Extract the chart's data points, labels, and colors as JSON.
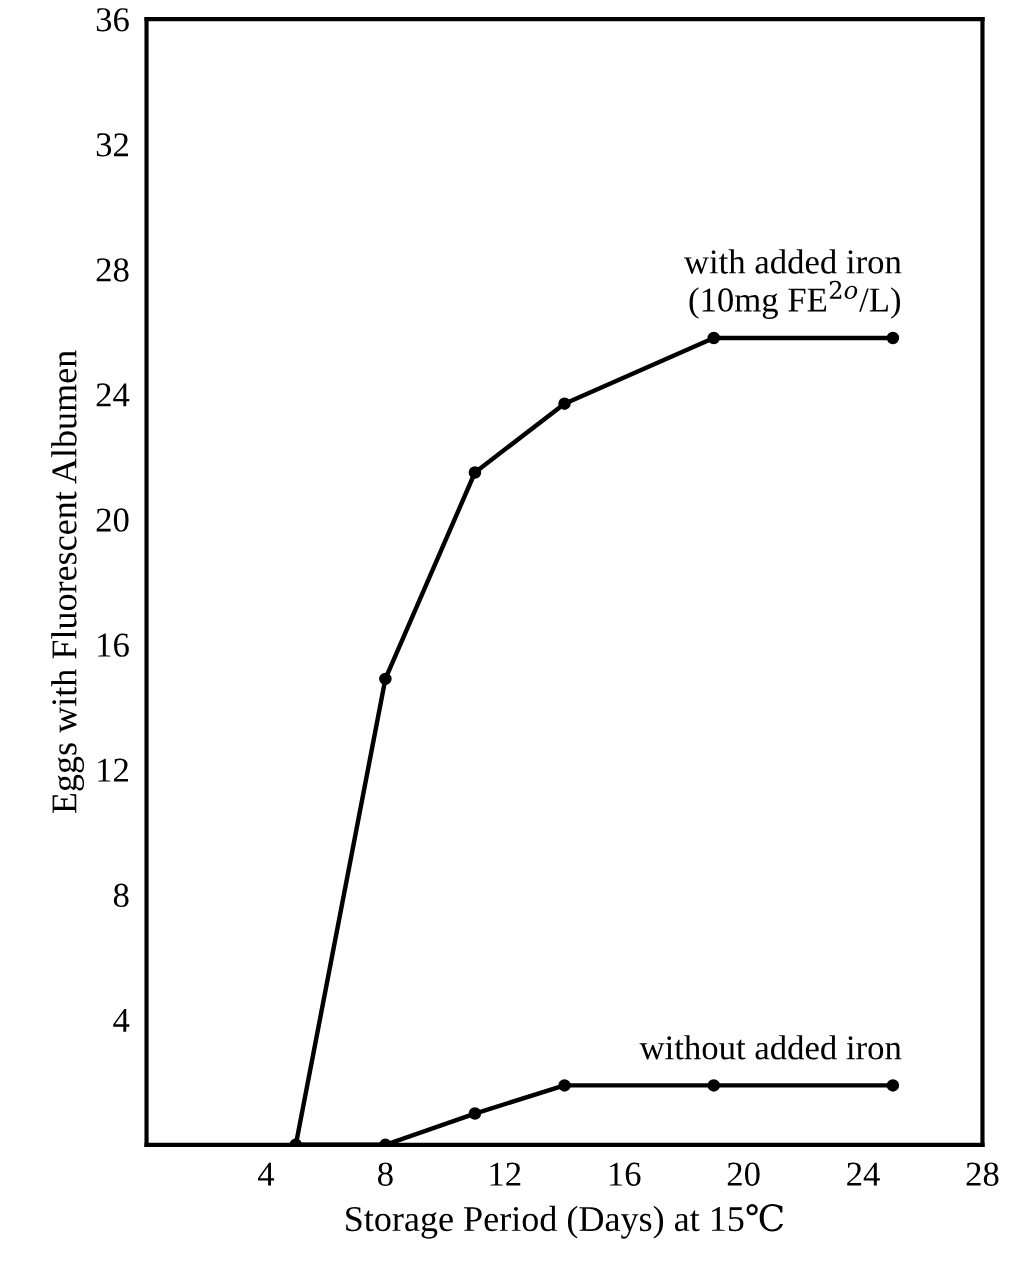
{
  "chart_data": {
    "type": "line",
    "xlabel": "Storage Period (Days) at 15℃",
    "ylabel": "Eggs with Fluorescent Albumen",
    "xlim": [
      0,
      28
    ],
    "xticks": [
      4,
      8,
      12,
      16,
      20,
      24,
      28
    ],
    "ylim": [
      0,
      36
    ],
    "yticks": [
      4,
      8,
      12,
      16,
      20,
      24,
      28,
      32,
      36
    ],
    "grid": false,
    "legend": false,
    "marker": "circle",
    "line_style": "solid",
    "series": [
      {
        "name": "with added iron\n(10mg FE$^{2o}$/L)",
        "color": "#000000",
        "x": [
          5,
          8,
          11,
          14,
          19,
          25
        ],
        "values": [
          0,
          14.9,
          21.5,
          23.7,
          25.8,
          25.8
        ]
      },
      {
        "name": "without added iron",
        "color": "#000000",
        "x": [
          5,
          8,
          11,
          14,
          19,
          25
        ],
        "values": [
          0,
          0,
          1.0,
          1.9,
          1.9,
          1.9
        ]
      }
    ]
  }
}
